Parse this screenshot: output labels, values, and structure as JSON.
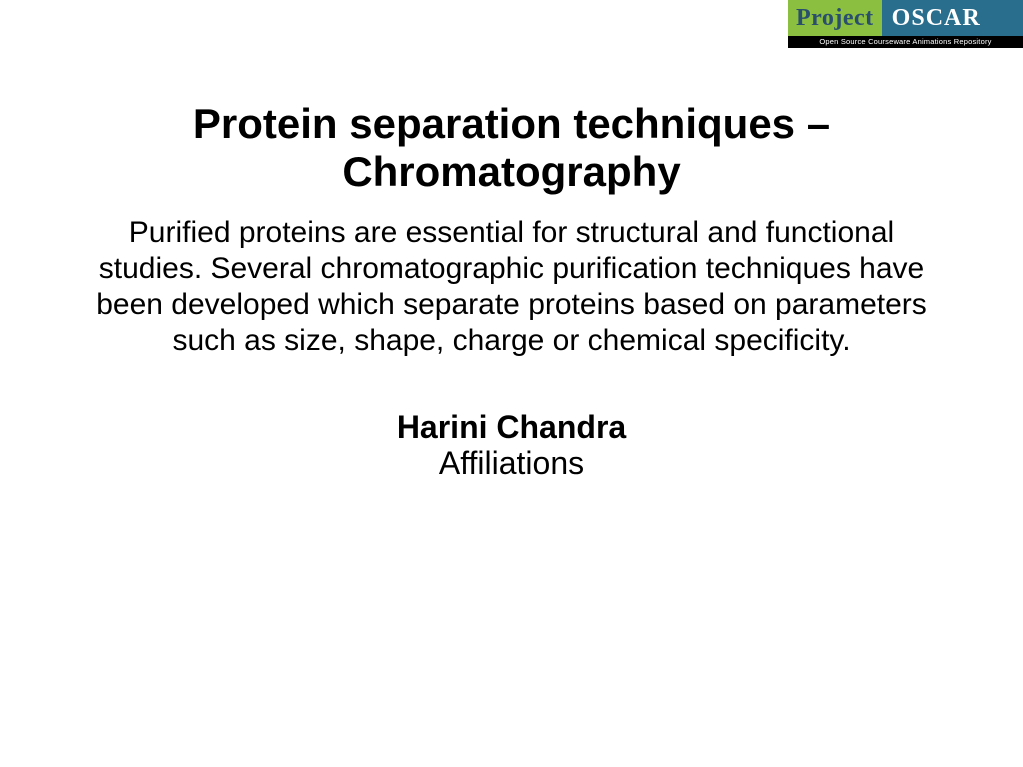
{
  "logo": {
    "word1": "Project",
    "word2": "OSCAR",
    "subtitle": "Open Source Courseware Animations Repository",
    "word1_bg": "#8bbf3f",
    "word1_color": "#2a4e6e",
    "word2_bg": "#2a6e8e",
    "word2_color": "#ffffff",
    "sub_bg": "#000000",
    "sub_color": "#ffffff"
  },
  "slide": {
    "title": "Protein separation techniques – Chromatography",
    "body": "Purified proteins are essential for structural and functional studies. Several chromatographic purification techniques have been developed which separate proteins based on parameters such as size, shape, charge or chemical specificity.",
    "author": "Harini Chandra",
    "affiliations": "Affiliations"
  },
  "style": {
    "title_fontsize": 42,
    "body_fontsize": 30,
    "author_fontsize": 32,
    "background": "#ffffff",
    "text_color": "#000000"
  }
}
